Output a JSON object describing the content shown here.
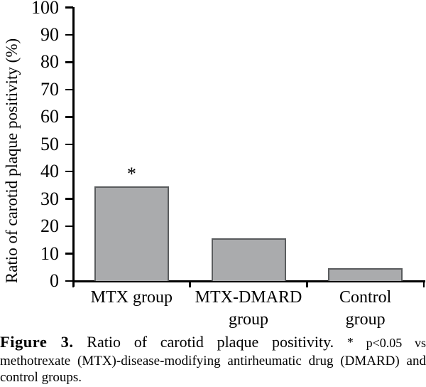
{
  "caption": {
    "figure_label": "Figure 3.",
    "title": "Ratio of carotid plaque positivity.",
    "star": "*",
    "note_line1": "p<0.05 vs",
    "note_line2": "methotrexate (MTX)-disease-modifying antirheumatic drug (DMARD) and",
    "note_line3": "control groups."
  },
  "chart_data": {
    "type": "bar",
    "title": "Ratio of carotid plaque positivity",
    "categories": [
      "MTX group",
      "MTX-DMARD group",
      "Control group"
    ],
    "category_label_lines": [
      [
        "MTX group"
      ],
      [
        "MTX-DMARD",
        "group"
      ],
      [
        "Control",
        "group"
      ]
    ],
    "values": [
      34.5,
      15.5,
      4.7
    ],
    "xlabel": "",
    "ylabel": "Ratio of carotid plaque positivity (%)",
    "ylim": [
      0,
      100
    ],
    "ytick_step": 10,
    "yticks": [
      0,
      10,
      20,
      30,
      40,
      50,
      60,
      70,
      80,
      90,
      100
    ],
    "grid": false,
    "legend": false,
    "bar_fill": "#aaabad",
    "bar_border": "#5a5c5e",
    "axis_color": "#000000",
    "annotations": [
      {
        "category": "MTX group",
        "text": "*"
      }
    ]
  }
}
